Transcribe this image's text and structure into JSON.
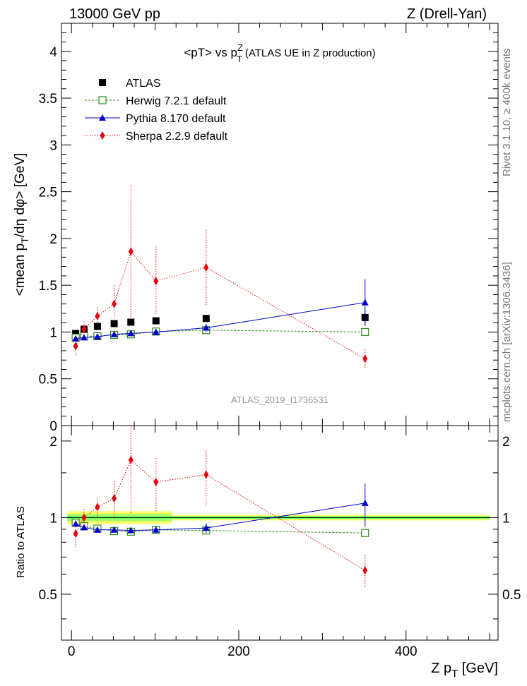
{
  "header": {
    "left": "13000 GeV pp",
    "right": "Z (Drell-Yan)"
  },
  "side_labels": {
    "rivet": "Rivet 3.1.10, ≥ 400k events",
    "mcplots": "mcplots.cern.ch [arXiv:1306.3436]"
  },
  "chart_data": [
    {
      "type": "scatter",
      "panel": "main",
      "title": "<pT> vs p_T^Z (ATLAS UE in Z production)",
      "ylabel": "<mean p_T/dη dφ> [GeV]",
      "watermark": "ATLAS_2019_I1736531",
      "xlim": [
        -12,
        510
      ],
      "ylim": [
        0,
        4.3
      ],
      "yticks": [
        0,
        0.5,
        1,
        1.5,
        2,
        2.5,
        3,
        3.5,
        4
      ],
      "ytick_labels": [
        "0",
        "0.5",
        "1",
        "1.5",
        "2",
        "2.5",
        "3",
        "3.5",
        "4"
      ],
      "legend_placement": "top-left",
      "x": [
        5,
        15,
        31,
        51,
        71,
        101,
        161,
        351
      ],
      "series": [
        {
          "name": "ATLAS",
          "style": "data",
          "color": "#000000",
          "marker": "square",
          "values": [
            0.985,
            1.03,
            1.06,
            1.09,
            1.105,
            1.12,
            1.145,
            1.155
          ],
          "errors": [
            0.01,
            0.01,
            0.01,
            0.015,
            0.015,
            0.02,
            0.03,
            0.08
          ]
        },
        {
          "name": "Herwig 7.2.1 default",
          "style": "dashed",
          "color": "#2e8b19",
          "marker": "open-square",
          "values": [
            0.94,
            0.955,
            0.955,
            0.97,
            0.975,
            1.005,
            1.02,
            1.0
          ],
          "errors": [
            0.02,
            0.02,
            0.02,
            0.02,
            0.02,
            0.02,
            0.02,
            0.02
          ]
        },
        {
          "name": "Pythia 8.170 default",
          "style": "solid",
          "color": "#0000cc",
          "marker": "triangle",
          "values": [
            0.93,
            0.94,
            0.95,
            0.975,
            0.985,
            1.0,
            1.045,
            1.315
          ],
          "errors": [
            0.02,
            0.02,
            0.02,
            0.02,
            0.02,
            0.03,
            0.04,
            0.25
          ]
        },
        {
          "name": "Sherpa 2.2.9 default",
          "style": "dotted",
          "color": "#e8000b",
          "marker": "diamond",
          "values": [
            0.85,
            1.03,
            1.17,
            1.3,
            1.86,
            1.545,
            1.69,
            0.715
          ],
          "errors": [
            0.1,
            0.08,
            0.1,
            0.2,
            0.71,
            0.37,
            0.4,
            0.1
          ]
        }
      ]
    },
    {
      "type": "scatter",
      "panel": "ratio",
      "xlabel": "Z p_T [GeV]",
      "ylabel": "Ratio to ATLAS",
      "xlim": [
        -12,
        510
      ],
      "ylim": [
        0.33,
        2.3
      ],
      "xticks": [
        0,
        200,
        400
      ],
      "xtick_labels": [
        "0",
        "200",
        "400"
      ],
      "yticks": [
        0.5,
        1,
        2
      ],
      "ytick_labels": [
        "0.5",
        "1",
        "2"
      ],
      "reference_band": {
        "center": 1.0,
        "color_inner": "#66ff66",
        "color_outer": "#ffff66"
      },
      "x": [
        5,
        15,
        31,
        51,
        71,
        101,
        161,
        351
      ],
      "series": [
        {
          "name": "Herwig 7.2.1 default",
          "style": "dashed",
          "color": "#2e8b19",
          "marker": "open-square",
          "values": [
            0.955,
            0.925,
            0.905,
            0.885,
            0.88,
            0.895,
            0.89,
            0.87
          ],
          "errors": [
            0.02,
            0.02,
            0.02,
            0.02,
            0.02,
            0.02,
            0.02,
            0.02
          ]
        },
        {
          "name": "Pythia 8.170 default",
          "style": "solid",
          "color": "#0000cc",
          "marker": "triangle",
          "values": [
            0.945,
            0.915,
            0.895,
            0.895,
            0.89,
            0.895,
            0.91,
            1.14
          ],
          "errors": [
            0.02,
            0.02,
            0.02,
            0.02,
            0.02,
            0.03,
            0.04,
            0.22
          ]
        },
        {
          "name": "Sherpa 2.2.9 default",
          "style": "dotted",
          "color": "#e8000b",
          "marker": "diamond",
          "values": [
            0.865,
            1.0,
            1.1,
            1.19,
            1.685,
            1.38,
            1.475,
            0.62
          ],
          "errors": [
            0.1,
            0.08,
            0.1,
            0.2,
            0.65,
            0.33,
            0.36,
            0.09
          ]
        }
      ]
    }
  ]
}
